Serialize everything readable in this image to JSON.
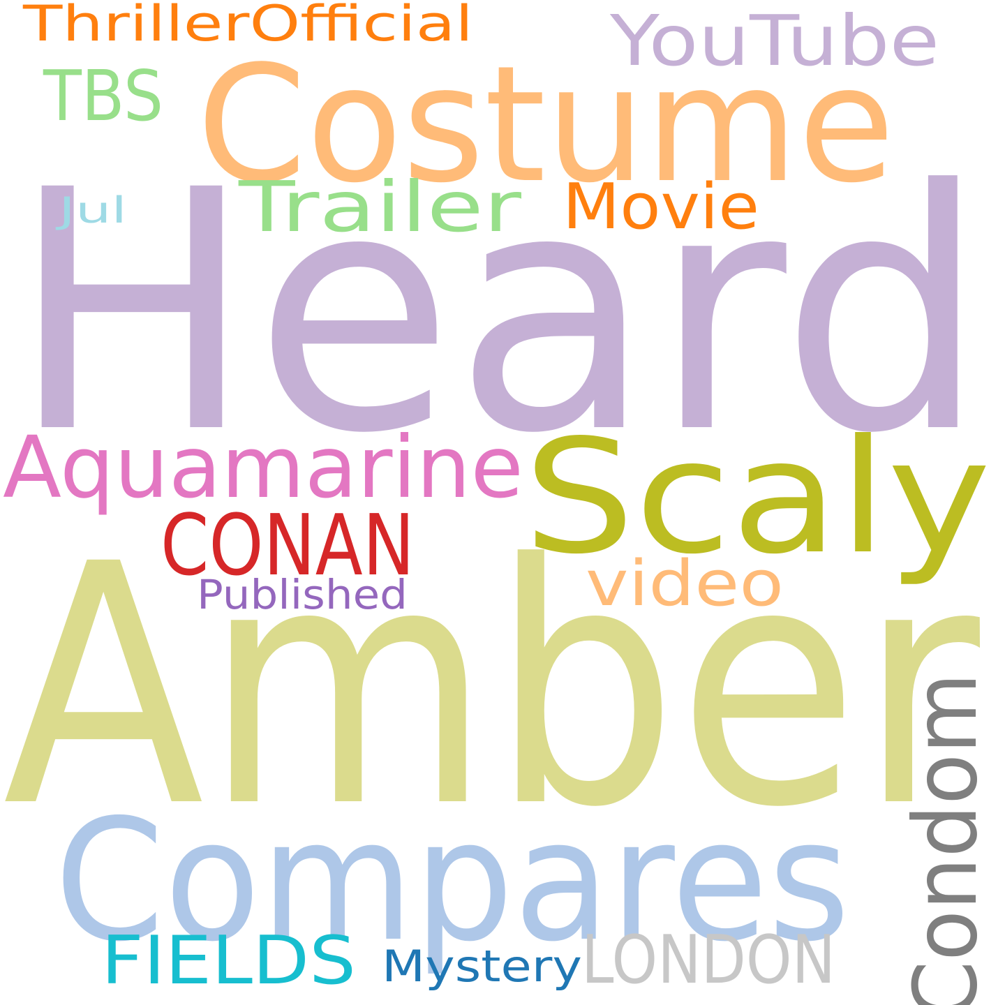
{
  "words": [
    {
      "text": "Heard",
      "color": "#c5b0d5"
    },
    {
      "text": "Amber",
      "color": "#dbdb8d"
    },
    {
      "text": "Costume",
      "color": "#ffbb78"
    },
    {
      "text": "Compares",
      "color": "#aec7e8"
    },
    {
      "text": "Scaly",
      "color": "#bcbd22"
    },
    {
      "text": "Aquamarine",
      "color": "#e377c2"
    },
    {
      "text": "CONAN",
      "color": "#d62728"
    },
    {
      "text": "Condom",
      "color": "#7f7f7f"
    },
    {
      "text": "YouTube",
      "color": "#c5b0d5"
    },
    {
      "text": "Trailer",
      "color": "#98df8a"
    },
    {
      "text": "Movie",
      "color": "#ff7f0e"
    },
    {
      "text": "TBS",
      "color": "#98df8a"
    },
    {
      "text": "ThrillerOfficial",
      "color": "#ff7f0e"
    },
    {
      "text": "video",
      "color": "#ffbb78"
    },
    {
      "text": "Published",
      "color": "#9467bd"
    },
    {
      "text": "FIELDS",
      "color": "#17becf"
    },
    {
      "text": "LONDON",
      "color": "#c7c7c7"
    },
    {
      "text": "Mystery",
      "color": "#1f77b4"
    },
    {
      "text": "Jul",
      "color": "#9edae5"
    }
  ]
}
